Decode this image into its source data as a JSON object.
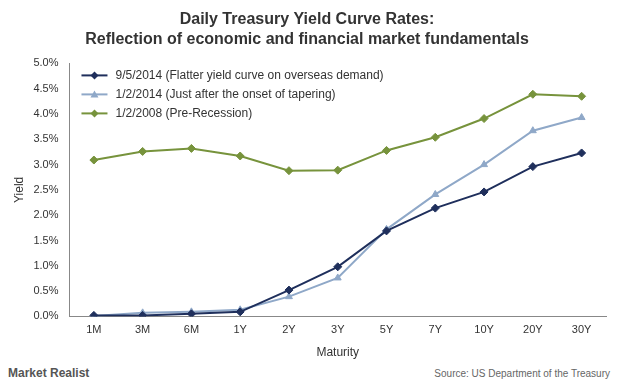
{
  "chart_data": {
    "type": "line",
    "title": "Daily Treasury Yield Curve Rates:",
    "subtitle": "Reflection of economic and financial market fundamentals",
    "x_label": "Maturity",
    "y_label": "Yield",
    "categories": [
      "1M",
      "3M",
      "6M",
      "1Y",
      "2Y",
      "3Y",
      "5Y",
      "7Y",
      "10Y",
      "20Y",
      "30Y"
    ],
    "series": [
      {
        "name": "9/5/2014 (Flatter yield curve on overseas demand)",
        "color": "#1f2f5c",
        "marker": "diamond",
        "values": [
          0.02,
          0.02,
          0.05,
          0.09,
          0.52,
          0.98,
          1.69,
          2.14,
          2.46,
          2.96,
          3.23
        ]
      },
      {
        "name": "1/2/2014 (Just after the onset of tapering)",
        "color": "#8fa8c8",
        "marker": "triangle",
        "values": [
          0.01,
          0.07,
          0.09,
          0.13,
          0.39,
          0.76,
          1.72,
          2.41,
          3.0,
          3.67,
          3.93
        ]
      },
      {
        "name": "1/2/2008 (Pre-Recession)",
        "color": "#77933c",
        "marker": "diamond",
        "values": [
          3.09,
          3.26,
          3.32,
          3.17,
          2.88,
          2.89,
          3.28,
          3.54,
          3.91,
          4.39,
          4.35
        ]
      }
    ],
    "ylim": [
      0,
      5
    ],
    "yticks": [
      {
        "value": 0,
        "label": "0.0%"
      },
      {
        "value": 0.5,
        "label": "0.5%"
      },
      {
        "value": 1,
        "label": "1.0%"
      },
      {
        "value": 1.5,
        "label": "1.5%"
      },
      {
        "value": 2,
        "label": "2.0%"
      },
      {
        "value": 2.5,
        "label": "2.5%"
      },
      {
        "value": 3,
        "label": "3.0%"
      },
      {
        "value": 3.5,
        "label": "3.5%"
      },
      {
        "value": 4,
        "label": "4.0%"
      },
      {
        "value": 4.5,
        "label": "4.5%"
      },
      {
        "value": 5,
        "label": "5.0%"
      }
    ],
    "grid": false,
    "legend": "upper left",
    "credit": "Market Realist",
    "source": "Source: US Department of the Treasury"
  }
}
